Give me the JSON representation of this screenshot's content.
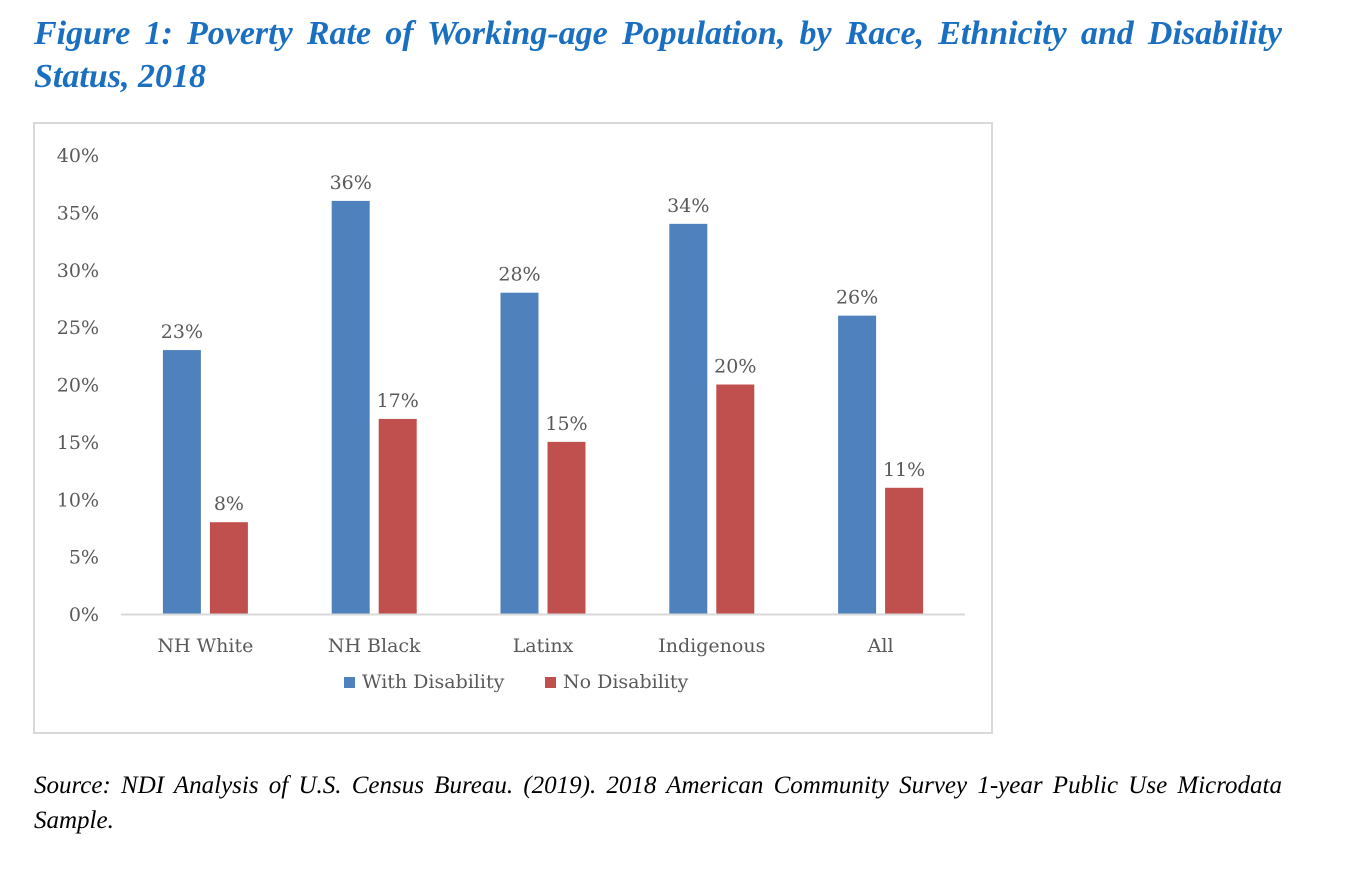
{
  "figure": {
    "title": "Figure 1: Poverty Rate of Working-age Population, by Race, Ethnicity and Disability Status, 2018",
    "source": "Source: NDI Analysis of U.S. Census Bureau. (2019). 2018 American Community Survey 1-year Public Use Microdata Sample."
  },
  "chart_data": {
    "type": "bar",
    "title": "",
    "xlabel": "",
    "ylabel": "",
    "categories": [
      "NH White",
      "NH Black",
      "Latinx",
      "Indigenous",
      "All"
    ],
    "series": [
      {
        "name": "With Disability",
        "color": "#4f81bd",
        "values": [
          23,
          36,
          28,
          34,
          26
        ],
        "labels": [
          "23%",
          "36%",
          "28%",
          "34%",
          "26%"
        ]
      },
      {
        "name": "No Disability",
        "color": "#c0504d",
        "values": [
          8,
          17,
          15,
          20,
          11
        ],
        "labels": [
          "8%",
          "17%",
          "15%",
          "20%",
          "11%"
        ]
      }
    ],
    "ylim": [
      0,
      40
    ],
    "yticks": [
      0,
      5,
      10,
      15,
      20,
      25,
      30,
      35,
      40
    ],
    "ytick_labels": [
      "0%",
      "5%",
      "10%",
      "15%",
      "20%",
      "25%",
      "30%",
      "35%",
      "40%"
    ],
    "grid": false,
    "legend_position": "bottom"
  }
}
